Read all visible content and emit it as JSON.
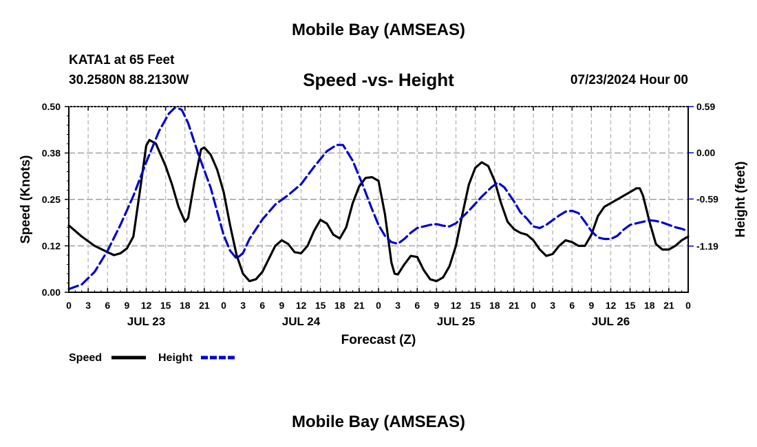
{
  "header": {
    "title": "Mobile Bay (AMSEAS)",
    "station": "KATA1 at 65 Feet",
    "coords": "30.2580N  88.2130W",
    "subtitle": "Speed -vs- Height",
    "datetime": "07/23/2024 Hour 00",
    "bottom_title": "Mobile Bay (AMSEAS)"
  },
  "chart_data": {
    "type": "line",
    "title": "Speed -vs- Height",
    "xlabel": "Forecast (Z)",
    "ylabel": "Speed (Knots)",
    "y2label": "Height (feet)",
    "xlim": [
      0,
      96
    ],
    "ylim": [
      0,
      0.5
    ],
    "y2lim": [
      -1.78,
      0.59
    ],
    "x_tick_labels": [
      "0",
      "3",
      "6",
      "9",
      "12",
      "15",
      "18",
      "21",
      "0",
      "3",
      "6",
      "9",
      "12",
      "15",
      "18",
      "21",
      "0",
      "3",
      "6",
      "9",
      "12",
      "15",
      "18",
      "21",
      "0",
      "3",
      "6",
      "9",
      "12",
      "15",
      "18",
      "21",
      "0"
    ],
    "day_labels": [
      {
        "hour": 12,
        "label": "JUL 23"
      },
      {
        "hour": 36,
        "label": "JUL 24"
      },
      {
        "hour": 60,
        "label": "JUL 25"
      },
      {
        "hour": 84,
        "label": "JUL 26"
      }
    ],
    "y_ticks": [
      {
        "value": 0.0,
        "label": "0.00"
      },
      {
        "value": 0.125,
        "label": "0.12"
      },
      {
        "value": 0.25,
        "label": "0.25"
      },
      {
        "value": 0.375,
        "label": "0.38"
      },
      {
        "value": 0.5,
        "label": "0.50"
      }
    ],
    "y2_ticks": [
      {
        "value": 0.59,
        "label": "0.59"
      },
      {
        "value": 0.0,
        "label": "0.00"
      },
      {
        "value": -0.59,
        "label": "-0.59"
      },
      {
        "value": -1.19,
        "label": "-1.19"
      }
    ],
    "grid": true,
    "legend_position": "bottom-left",
    "series": [
      {
        "name": "Speed",
        "axis": "left",
        "color": "#000000",
        "style": "solid",
        "points": [
          [
            0,
            0.18
          ],
          [
            2,
            0.15
          ],
          [
            4,
            0.125
          ],
          [
            6,
            0.108
          ],
          [
            7,
            0.1
          ],
          [
            8,
            0.105
          ],
          [
            9,
            0.118
          ],
          [
            10,
            0.15
          ],
          [
            11,
            0.27
          ],
          [
            12,
            0.395
          ],
          [
            12.5,
            0.41
          ],
          [
            13.5,
            0.4
          ],
          [
            15,
            0.34
          ],
          [
            16,
            0.29
          ],
          [
            17,
            0.23
          ],
          [
            18,
            0.19
          ],
          [
            18.5,
            0.2
          ],
          [
            19.5,
            0.3
          ],
          [
            20.5,
            0.385
          ],
          [
            21,
            0.39
          ],
          [
            22,
            0.37
          ],
          [
            23,
            0.33
          ],
          [
            24,
            0.27
          ],
          [
            25,
            0.18
          ],
          [
            26,
            0.1
          ],
          [
            27,
            0.05
          ],
          [
            28,
            0.03
          ],
          [
            29,
            0.035
          ],
          [
            30,
            0.055
          ],
          [
            31,
            0.09
          ],
          [
            32,
            0.125
          ],
          [
            33,
            0.14
          ],
          [
            34,
            0.13
          ],
          [
            35,
            0.108
          ],
          [
            36,
            0.105
          ],
          [
            37,
            0.125
          ],
          [
            38,
            0.165
          ],
          [
            39,
            0.195
          ],
          [
            40,
            0.185
          ],
          [
            41,
            0.155
          ],
          [
            42,
            0.145
          ],
          [
            43,
            0.175
          ],
          [
            44,
            0.24
          ],
          [
            45,
            0.285
          ],
          [
            46,
            0.308
          ],
          [
            47,
            0.31
          ],
          [
            48,
            0.3
          ],
          [
            49,
            0.21
          ],
          [
            50,
            0.08
          ],
          [
            50.5,
            0.05
          ],
          [
            51,
            0.048
          ],
          [
            52,
            0.075
          ],
          [
            53,
            0.098
          ],
          [
            54,
            0.095
          ],
          [
            55,
            0.06
          ],
          [
            56,
            0.035
          ],
          [
            57,
            0.03
          ],
          [
            58,
            0.04
          ],
          [
            59,
            0.07
          ],
          [
            60,
            0.125
          ],
          [
            61,
            0.21
          ],
          [
            62,
            0.29
          ],
          [
            63,
            0.335
          ],
          [
            64,
            0.35
          ],
          [
            65,
            0.34
          ],
          [
            66,
            0.3
          ],
          [
            67,
            0.24
          ],
          [
            68,
            0.19
          ],
          [
            69,
            0.17
          ],
          [
            70,
            0.16
          ],
          [
            71,
            0.155
          ],
          [
            72,
            0.14
          ],
          [
            73,
            0.115
          ],
          [
            74,
            0.098
          ],
          [
            75,
            0.103
          ],
          [
            76,
            0.125
          ],
          [
            77,
            0.14
          ],
          [
            78,
            0.135
          ],
          [
            79,
            0.125
          ],
          [
            80,
            0.125
          ],
          [
            81,
            0.155
          ],
          [
            82,
            0.205
          ],
          [
            83,
            0.23
          ],
          [
            84,
            0.24
          ],
          [
            85,
            0.25
          ],
          [
            86,
            0.26
          ],
          [
            87,
            0.27
          ],
          [
            88,
            0.28
          ],
          [
            88.5,
            0.28
          ],
          [
            89,
            0.26
          ],
          [
            90,
            0.19
          ],
          [
            91,
            0.13
          ],
          [
            92,
            0.115
          ],
          [
            93,
            0.115
          ],
          [
            94,
            0.125
          ],
          [
            95,
            0.14
          ],
          [
            96,
            0.15
          ]
        ]
      },
      {
        "name": "Height",
        "axis": "right",
        "color": "#0000cc",
        "style": "dashed",
        "points": [
          [
            0,
            -1.74
          ],
          [
            2,
            -1.68
          ],
          [
            4,
            -1.52
          ],
          [
            6,
            -1.25
          ],
          [
            8,
            -0.92
          ],
          [
            10,
            -0.55
          ],
          [
            12,
            -0.12
          ],
          [
            14,
            0.28
          ],
          [
            15.5,
            0.5
          ],
          [
            16.5,
            0.58
          ],
          [
            17.5,
            0.55
          ],
          [
            18.5,
            0.38
          ],
          [
            20,
            0.0
          ],
          [
            22,
            -0.45
          ],
          [
            23,
            -0.75
          ],
          [
            24,
            -1.05
          ],
          [
            25,
            -1.25
          ],
          [
            26,
            -1.35
          ],
          [
            27,
            -1.28
          ],
          [
            28,
            -1.1
          ],
          [
            30,
            -0.85
          ],
          [
            32,
            -0.66
          ],
          [
            34,
            -0.54
          ],
          [
            36,
            -0.4
          ],
          [
            38,
            -0.18
          ],
          [
            40,
            0.02
          ],
          [
            41.5,
            0.1
          ],
          [
            42.5,
            0.1
          ],
          [
            44,
            -0.1
          ],
          [
            45.5,
            -0.4
          ],
          [
            47,
            -0.72
          ],
          [
            48,
            -0.92
          ],
          [
            49,
            -1.06
          ],
          [
            50,
            -1.14
          ],
          [
            51,
            -1.16
          ],
          [
            52,
            -1.1
          ],
          [
            53,
            -1.02
          ],
          [
            54,
            -0.96
          ],
          [
            56,
            -0.92
          ],
          [
            57,
            -0.91
          ],
          [
            58,
            -0.93
          ],
          [
            59,
            -0.94
          ],
          [
            60,
            -0.9
          ],
          [
            62,
            -0.74
          ],
          [
            64,
            -0.56
          ],
          [
            65.5,
            -0.44
          ],
          [
            66.5,
            -0.38
          ],
          [
            67.5,
            -0.44
          ],
          [
            69,
            -0.62
          ],
          [
            70,
            -0.76
          ],
          [
            71,
            -0.84
          ],
          [
            72,
            -0.94
          ],
          [
            73,
            -0.96
          ],
          [
            74,
            -0.92
          ],
          [
            75,
            -0.86
          ],
          [
            76,
            -0.8
          ],
          [
            77,
            -0.75
          ],
          [
            78,
            -0.74
          ],
          [
            79,
            -0.77
          ],
          [
            80,
            -0.88
          ],
          [
            81,
            -1.0
          ],
          [
            82,
            -1.08
          ],
          [
            83,
            -1.1
          ],
          [
            84,
            -1.1
          ],
          [
            85,
            -1.06
          ],
          [
            86,
            -0.98
          ],
          [
            87,
            -0.92
          ],
          [
            88,
            -0.9
          ],
          [
            89,
            -0.88
          ],
          [
            90,
            -0.86
          ],
          [
            91,
            -0.87
          ],
          [
            92,
            -0.89
          ],
          [
            93,
            -0.92
          ],
          [
            94,
            -0.95
          ],
          [
            95,
            -0.97
          ],
          [
            96,
            -1.0
          ]
        ]
      }
    ]
  }
}
